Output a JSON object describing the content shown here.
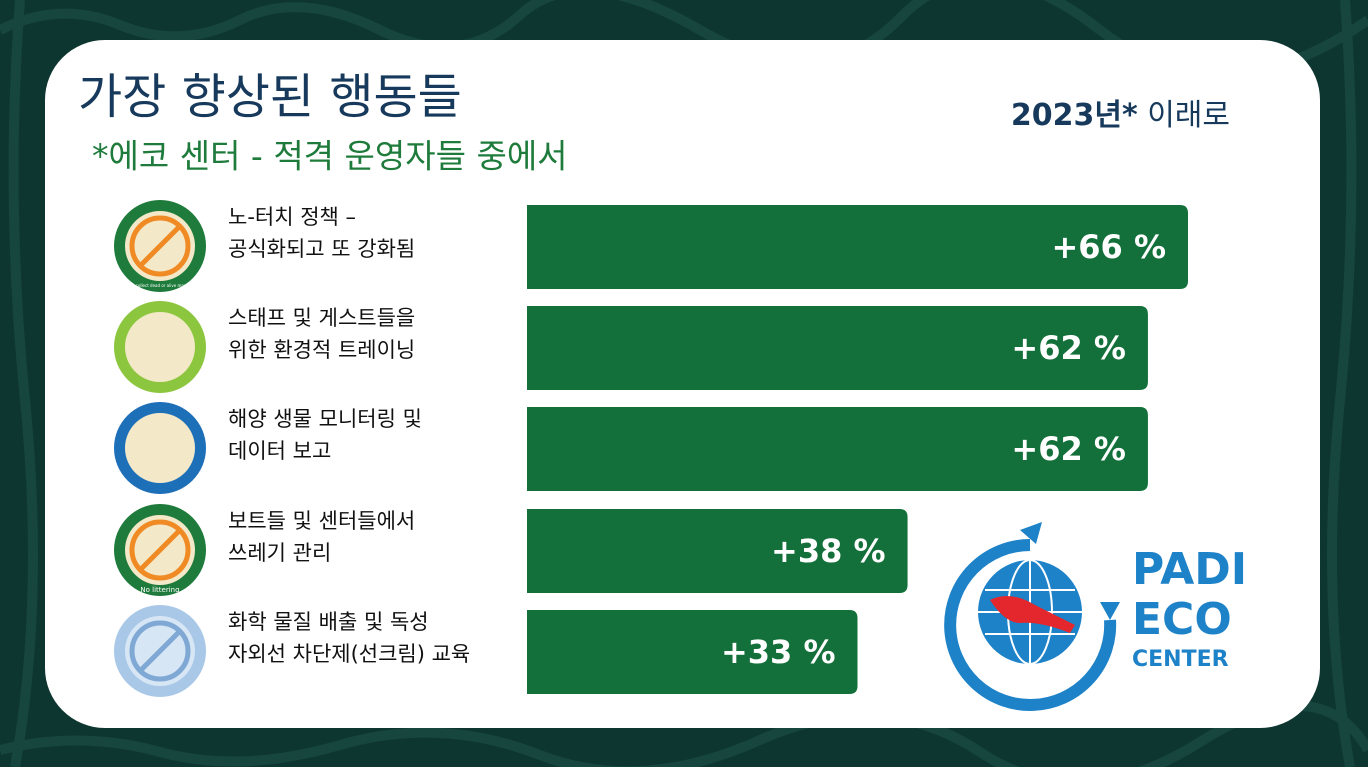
{
  "chart_data": {
    "type": "bar",
    "orientation": "horizontal",
    "title": "가장 향상된 행동들",
    "subtitle": "*에코 센터 - 적격 운영자들 중에서",
    "annotation": {
      "bold": "2023년*",
      "text": "이래로"
    },
    "categories": [
      "노-터치 정책 –\n공식화되고 또 강화됨",
      "스태프 및 게스트들을\n위한 환경적 트레이닝",
      "해양 생물 모니터링 및\n데이터 보고",
      "보트들 및 센터들에서\n쓰레기 관리",
      "화학 물질 배출 및  독성\n자외선 차단제(선크림) 교육"
    ],
    "values": [
      66,
      62,
      62,
      38,
      33
    ],
    "value_labels": [
      "+66 %",
      "+62 %",
      "+62 %",
      "+38 %",
      "+33 %"
    ],
    "color": "#14703a",
    "icon_captions": [
      "Do not collect dead or alive marine life",
      null,
      null,
      "No littering",
      null
    ]
  },
  "logo": {
    "line1": "PADI",
    "line2": "ECO",
    "line3": "CENTER"
  }
}
